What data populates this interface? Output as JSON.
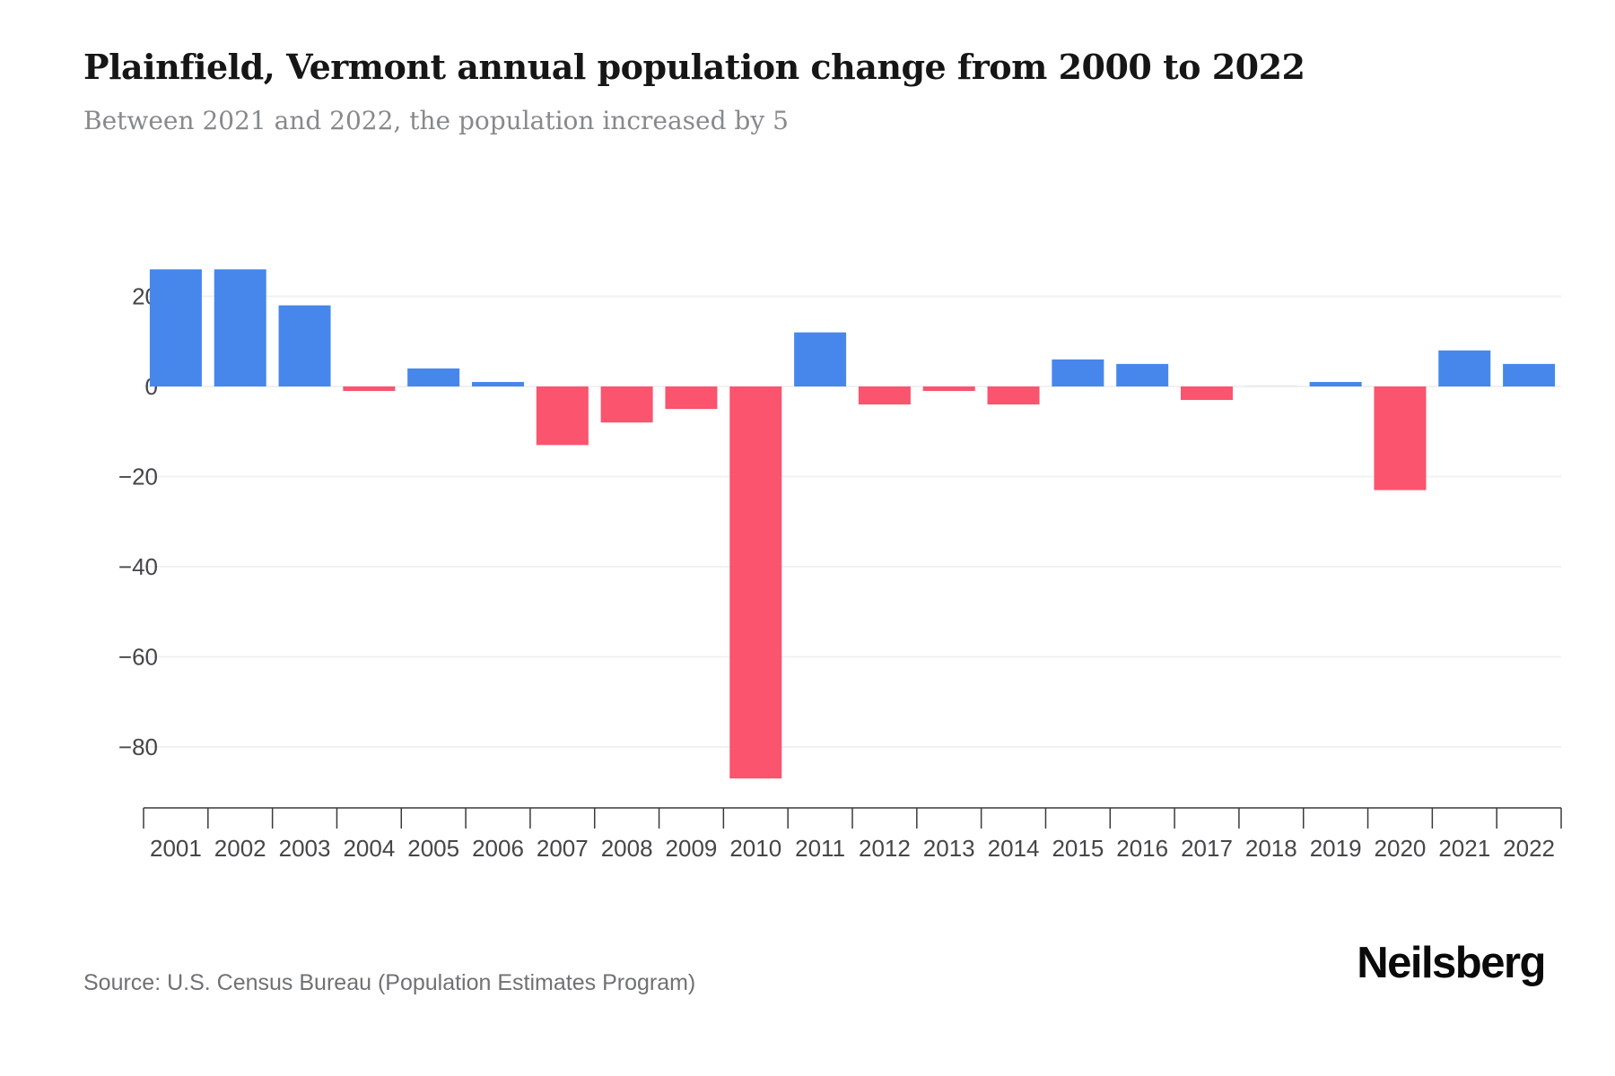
{
  "page": {
    "title": "Plainfield, Vermont annual population change from 2000 to 2022",
    "subtitle": "Between 2021 and 2022, the population increased by 5",
    "source": "Source: U.S. Census Bureau (Population Estimates Program)",
    "brand": "Neilsberg"
  },
  "chart_data": {
    "type": "bar",
    "title": "Plainfield, Vermont annual population change from 2000 to 2022",
    "subtitle": "Between 2021 and 2022, the population increased by 5",
    "xlabel": "",
    "ylabel": "",
    "categories": [
      "2001",
      "2002",
      "2003",
      "2004",
      "2005",
      "2006",
      "2007",
      "2008",
      "2009",
      "2010",
      "2011",
      "2012",
      "2013",
      "2014",
      "2015",
      "2016",
      "2017",
      "2018",
      "2019",
      "2020",
      "2021",
      "2022"
    ],
    "values": [
      26,
      26,
      18,
      -1,
      4,
      1,
      -13,
      -8,
      -5,
      -87,
      12,
      -4,
      -1,
      -4,
      6,
      5,
      -3,
      0,
      1,
      -23,
      8,
      5
    ],
    "yticks": [
      20,
      0,
      -20,
      -40,
      -60,
      -80
    ],
    "ylim": [
      -94,
      36
    ],
    "grid": true,
    "legend": "none",
    "colors": {
      "positive": "#4787ec",
      "negative": "#fa546e",
      "zero_bar": "#ececee",
      "gridline": "#f1f1f3",
      "axis_line": "#3a3a3e",
      "tick_label": "#45464a"
    }
  }
}
